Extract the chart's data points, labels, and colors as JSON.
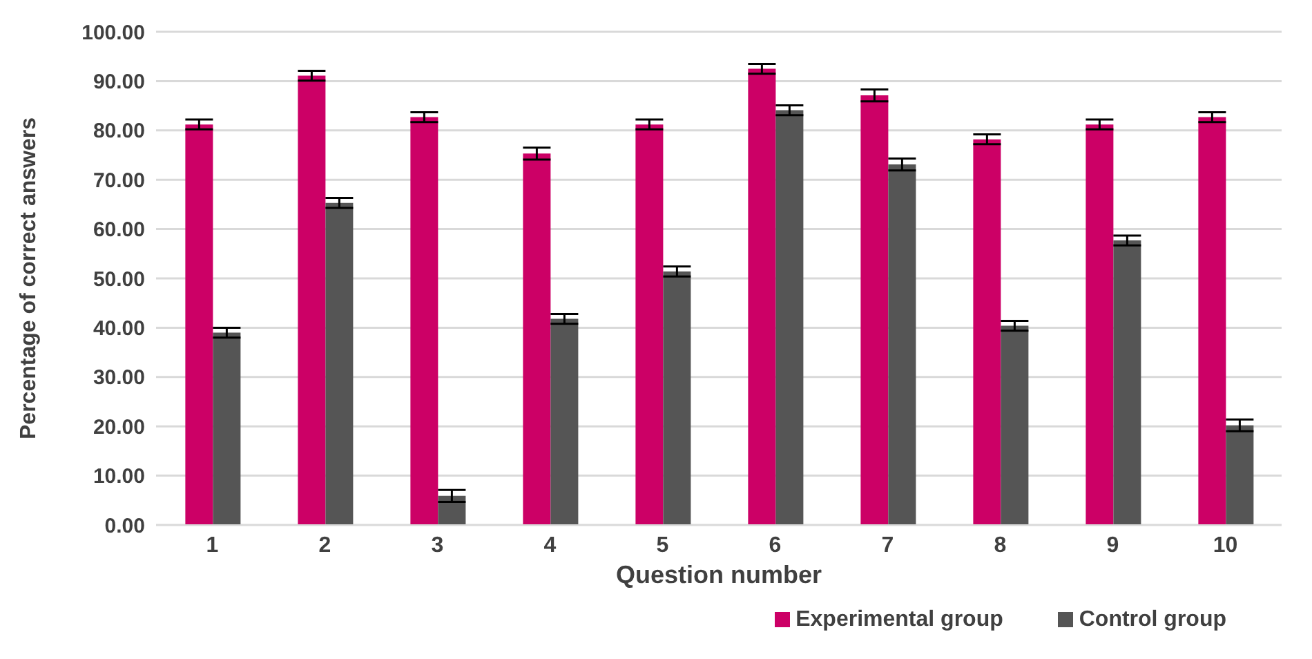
{
  "chart_data": {
    "type": "bar",
    "xlabel": "Question number",
    "ylabel": "Percentage of correct answers",
    "categories": [
      "1",
      "2",
      "3",
      "4",
      "5",
      "6",
      "7",
      "8",
      "9",
      "10"
    ],
    "series": [
      {
        "name": "Experimental group",
        "color": "#cc0066",
        "values": [
          81.2,
          91.1,
          82.7,
          75.3,
          81.2,
          92.5,
          87.1,
          78.2,
          81.2,
          82.7
        ],
        "errors": [
          1,
          1,
          1,
          1.2,
          1,
          1,
          1.2,
          1,
          1,
          1
        ]
      },
      {
        "name": "Control group",
        "color": "#555555",
        "values": [
          39.0,
          65.3,
          5.9,
          41.8,
          51.4,
          84.1,
          73.1,
          40.4,
          57.7,
          20.2
        ],
        "errors": [
          1,
          1,
          1.2,
          1,
          1,
          1,
          1.2,
          1,
          1,
          1.2
        ]
      }
    ],
    "ylim": [
      0,
      100
    ],
    "yticks": [
      {
        "value": 0,
        "label": "0.00"
      },
      {
        "value": 10,
        "label": "10.00"
      },
      {
        "value": 20,
        "label": "20.00"
      },
      {
        "value": 30,
        "label": "30.00"
      },
      {
        "value": 40,
        "label": "40.00"
      },
      {
        "value": 50,
        "label": "50.00"
      },
      {
        "value": 60,
        "label": "60.00"
      },
      {
        "value": 70,
        "label": "70.00"
      },
      {
        "value": 80,
        "label": "80.00"
      },
      {
        "value": 90,
        "label": "90.00"
      },
      {
        "value": 100,
        "label": "100.00"
      }
    ],
    "grid": "y",
    "legend": "bottom right"
  }
}
